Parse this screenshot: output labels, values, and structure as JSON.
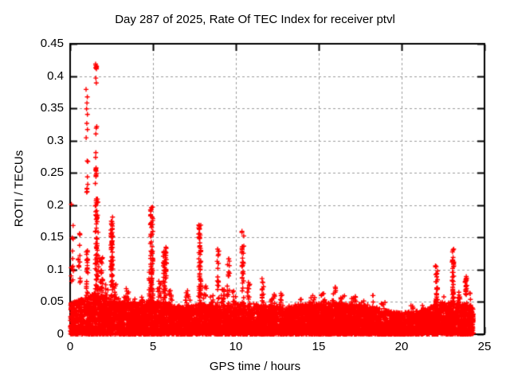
{
  "chart_data": {
    "type": "scatter",
    "title": "Day 287 of 2025, Rate Of TEC Index for receiver ptvl",
    "xlabel": "GPS time / hours",
    "ylabel": "ROTI / TECUs",
    "xlim": [
      0,
      25
    ],
    "ylim": [
      0,
      0.45
    ],
    "xticks": [
      0,
      5,
      10,
      15,
      20,
      25
    ],
    "xtick_labels": [
      "0",
      "5",
      "10",
      "15",
      "20",
      "25"
    ],
    "ytick_values": [
      0,
      0.05,
      0.1,
      0.15,
      0.2,
      0.25,
      0.3,
      0.35,
      0.4,
      0.45
    ],
    "ytick_labels": [
      "0",
      "0.05",
      "0.1",
      "0.15",
      "0.2",
      "0.25",
      "0.3",
      "0.35",
      "0.4",
      "0.45"
    ],
    "grid": true,
    "grid_lines_x": [
      5,
      10,
      15,
      20
    ],
    "grid_lines_y": [
      0.05,
      0.1,
      0.15,
      0.2,
      0.25,
      0.3,
      0.35,
      0.4
    ],
    "legend": "none",
    "colors": {
      "marker": "#ff0000",
      "grid": "#9c9c9c",
      "border": "#000000",
      "background": "#ffffff",
      "text": "#000000"
    },
    "series": [
      {
        "name": "ROTI",
        "marker": "plus",
        "color": "#ff0000",
        "x_range": [
          0,
          24.33
        ],
        "summary": "Dense ROTI baseline 0-0.05 TECUs across 0-24.3 h; activity spikes near hours 0.1 (0.20), 1.0 (0.38), 1.6 (0.43 max), 2.5 (0.18), 4.9 (0.20), 5.7 (0.14), 7.8 (0.17), 8.9 (0.13), 9.5 (0.12), 10.4 (0.16), 11.6 (0.09), quiet 12-21 (<0.07), then 22.1 (0.11), 23.1 (0.14), 23.9 (0.09).",
        "seed": 42,
        "baseline": {
          "count": 8000,
          "y_exponent": 1.6,
          "envelope": [
            [
              0,
              0.05
            ],
            [
              0.8,
              0.055
            ],
            [
              1.5,
              0.065
            ],
            [
              2,
              0.06
            ],
            [
              2.6,
              0.05
            ],
            [
              3.5,
              0.048
            ],
            [
              5,
              0.052
            ],
            [
              6,
              0.047
            ],
            [
              7,
              0.042
            ],
            [
              8,
              0.048
            ],
            [
              9,
              0.044
            ],
            [
              10,
              0.048
            ],
            [
              11,
              0.042
            ],
            [
              12,
              0.046
            ],
            [
              13,
              0.042
            ],
            [
              14,
              0.046
            ],
            [
              15,
              0.048
            ],
            [
              16,
              0.05
            ],
            [
              17,
              0.047
            ],
            [
              18,
              0.046
            ],
            [
              19,
              0.038
            ],
            [
              19.9,
              0.033
            ],
            [
              20.8,
              0.036
            ],
            [
              21.6,
              0.04
            ],
            [
              22,
              0.046
            ],
            [
              23,
              0.05
            ],
            [
              24,
              0.046
            ],
            [
              24.33,
              0.04
            ]
          ]
        },
        "spikes": [
          [
            0.12,
            0.15,
            0.08,
            0.205,
            14
          ],
          [
            0.55,
            0.2,
            0.07,
            0.158,
            14
          ],
          [
            1.02,
            0.12,
            0.21,
            0.385,
            16
          ],
          [
            1.02,
            0.1,
            0.05,
            0.14,
            22
          ],
          [
            1.57,
            0.07,
            0.385,
            0.427,
            9
          ],
          [
            1.57,
            0.1,
            0.23,
            0.33,
            14
          ],
          [
            1.6,
            0.18,
            0.05,
            0.21,
            70
          ],
          [
            1.85,
            0.25,
            0.03,
            0.12,
            40
          ],
          [
            2.2,
            0.2,
            0.02,
            0.08,
            25
          ],
          [
            2.52,
            0.14,
            0.04,
            0.183,
            80
          ],
          [
            2.75,
            0.2,
            0.02,
            0.08,
            25
          ],
          [
            3.1,
            0.35,
            0.02,
            0.06,
            25
          ],
          [
            3.45,
            0.25,
            0.02,
            0.072,
            20
          ],
          [
            3.9,
            0.3,
            0.02,
            0.055,
            18
          ],
          [
            4.35,
            0.25,
            0.02,
            0.06,
            18
          ],
          [
            4.8,
            0.2,
            0.02,
            0.1,
            30
          ],
          [
            4.92,
            0.16,
            0.05,
            0.197,
            70
          ],
          [
            5.35,
            0.25,
            0.02,
            0.085,
            30
          ],
          [
            5.72,
            0.2,
            0.04,
            0.14,
            60
          ],
          [
            6.05,
            0.2,
            0.02,
            0.07,
            25
          ],
          [
            6.55,
            0.3,
            0.01,
            0.045,
            15
          ],
          [
            7.1,
            0.3,
            0.02,
            0.068,
            25
          ],
          [
            7.82,
            0.14,
            0.04,
            0.172,
            65
          ],
          [
            8.15,
            0.2,
            0.02,
            0.075,
            25
          ],
          [
            8.55,
            0.2,
            0.02,
            0.06,
            18
          ],
          [
            8.92,
            0.12,
            0.04,
            0.132,
            22
          ],
          [
            9.2,
            0.2,
            0.02,
            0.07,
            20
          ],
          [
            9.55,
            0.15,
            0.03,
            0.117,
            20
          ],
          [
            9.9,
            0.25,
            0.02,
            0.07,
            22
          ],
          [
            10.42,
            0.12,
            0.04,
            0.16,
            35
          ],
          [
            10.75,
            0.2,
            0.02,
            0.085,
            20
          ],
          [
            11.2,
            0.3,
            0.01,
            0.05,
            15
          ],
          [
            11.62,
            0.15,
            0.02,
            0.088,
            18
          ],
          [
            12.2,
            0.35,
            0.02,
            0.062,
            20
          ],
          [
            12.75,
            0.25,
            0.02,
            0.066,
            15
          ],
          [
            13.4,
            0.4,
            0.01,
            0.05,
            15
          ],
          [
            13.85,
            0.3,
            0.02,
            0.057,
            14
          ],
          [
            14.6,
            0.35,
            0.02,
            0.062,
            18
          ],
          [
            15.25,
            0.35,
            0.02,
            0.066,
            18
          ],
          [
            15.9,
            0.25,
            0.02,
            0.073,
            14
          ],
          [
            16.5,
            0.4,
            0.02,
            0.06,
            18
          ],
          [
            17.1,
            0.35,
            0.02,
            0.06,
            16
          ],
          [
            17.7,
            0.3,
            0.02,
            0.058,
            14
          ],
          [
            18.3,
            0.3,
            0.02,
            0.06,
            14
          ],
          [
            18.9,
            0.3,
            0.01,
            0.05,
            12
          ],
          [
            20.6,
            0.35,
            0.01,
            0.05,
            12
          ],
          [
            21.3,
            0.3,
            0.01,
            0.048,
            12
          ],
          [
            22.1,
            0.14,
            0.03,
            0.107,
            35
          ],
          [
            22.45,
            0.2,
            0.02,
            0.06,
            15
          ],
          [
            23.1,
            0.12,
            0.04,
            0.138,
            40
          ],
          [
            23.5,
            0.2,
            0.02,
            0.065,
            15
          ],
          [
            23.88,
            0.12,
            0.03,
            0.092,
            30
          ],
          [
            24.15,
            0.12,
            0.02,
            0.07,
            18
          ]
        ]
      }
    ]
  }
}
